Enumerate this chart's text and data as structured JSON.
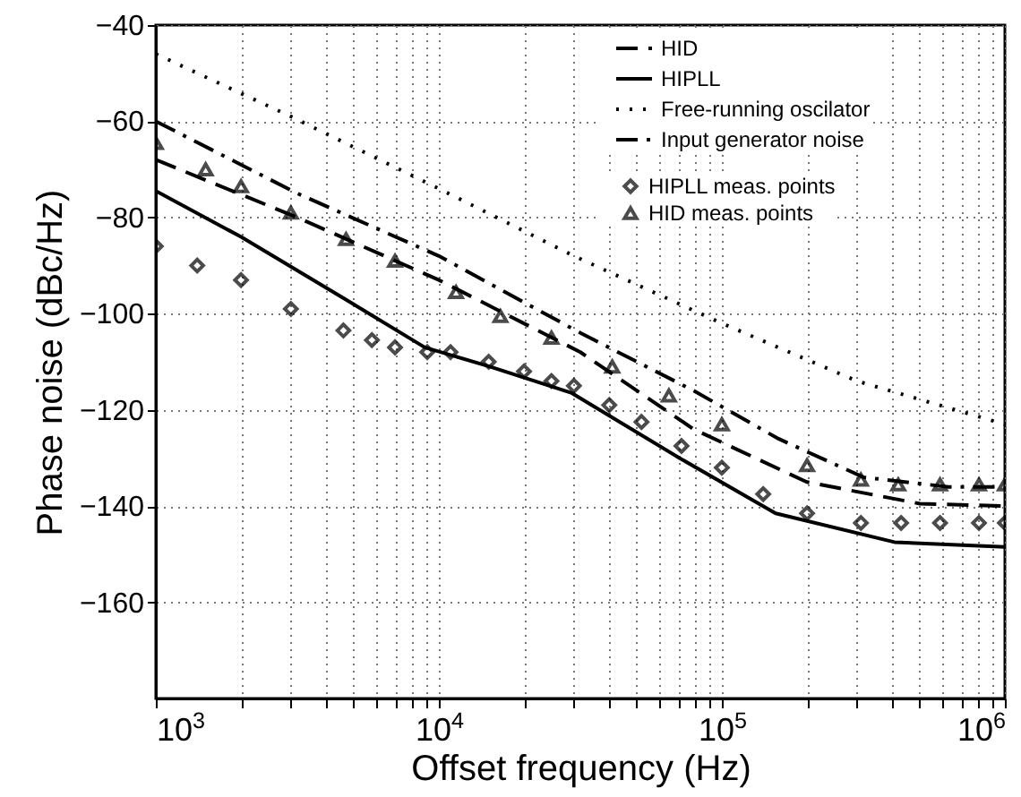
{
  "chart_data": {
    "type": "line",
    "xlabel": "Offset frequency (Hz)",
    "ylabel": "Phase noise (dBc/Hz)",
    "log": "x",
    "xlim": [
      1000,
      1000000
    ],
    "ylim": [
      -180,
      -40
    ],
    "xticks": [
      {
        "value": 1000,
        "label": "10$^{3}$"
      },
      {
        "value": 2000,
        "label": null
      },
      {
        "value": 3000,
        "label": null
      },
      {
        "value": 4000,
        "label": null
      },
      {
        "value": 5000,
        "label": null
      },
      {
        "value": 6000,
        "label": null
      },
      {
        "value": 7000,
        "label": null
      },
      {
        "value": 8000,
        "label": null
      },
      {
        "value": 9000,
        "label": null
      },
      {
        "value": 10000,
        "label": "10$^{4}$"
      },
      {
        "value": 20000,
        "label": null
      },
      {
        "value": 30000,
        "label": null
      },
      {
        "value": 40000,
        "label": null
      },
      {
        "value": 50000,
        "label": null
      },
      {
        "value": 60000,
        "label": null
      },
      {
        "value": 70000,
        "label": null
      },
      {
        "value": 80000,
        "label": null
      },
      {
        "value": 90000,
        "label": null
      },
      {
        "value": 100000,
        "label": "10$^{5}$"
      },
      {
        "value": 200000,
        "label": null
      },
      {
        "value": 300000,
        "label": null
      },
      {
        "value": 400000,
        "label": null
      },
      {
        "value": 500000,
        "label": null
      },
      {
        "value": 600000,
        "label": null
      },
      {
        "value": 700000,
        "label": null
      },
      {
        "value": 800000,
        "label": null
      },
      {
        "value": 900000,
        "label": null
      },
      {
        "value": 1000000,
        "label": "10$^{6}$"
      }
    ],
    "yticks": [
      -160,
      -140,
      -120,
      -100,
      -80,
      -60,
      -40
    ],
    "grid": true,
    "legend": "top right",
    "series": [
      {
        "name": "HID",
        "line_style": "dashed",
        "color": "#000000",
        "x": [
          1000,
          3162,
          10000,
          31623,
          79433,
          199526,
          501187,
          1000000
        ],
        "values": [
          -68,
          -80,
          -93,
          -108,
          -124,
          -135,
          -139.5,
          -140
        ]
      },
      {
        "name": "HIPLL",
        "line_style": "solid",
        "color": "#000000",
        "x": [
          1000,
          1995,
          4677,
          8913,
          15136,
          29512,
          70795,
          154882,
          407380,
          1000000
        ],
        "values": [
          -74.5,
          -84,
          -97,
          -107,
          -111,
          -116.5,
          -130,
          -141.5,
          -147.5,
          -148.5
        ]
      },
      {
        "name": "Free-running oscilator",
        "line_style": "dotted",
        "color": "#000000",
        "x": [
          1000,
          3000,
          10000,
          30000,
          100000,
          300000,
          1000000
        ],
        "values": [
          -46,
          -59,
          -74,
          -88,
          -102,
          -114,
          -123
        ]
      },
      {
        "name": "Input generator noise",
        "line_style": "dashdot",
        "color": "#000000",
        "x": [
          1000,
          3162,
          10000,
          31623,
          79433,
          158489,
          316228,
          630957,
          1000000
        ],
        "values": [
          -60,
          -75,
          -88,
          -104,
          -116,
          -126,
          -134,
          -136,
          -136
        ]
      },
      {
        "name": "HIPLL meas. points",
        "type": "scatter",
        "marker": "diamond",
        "color": "#000000",
        "x": [
          1000,
          1400,
          2000,
          3000,
          4600,
          5800,
          7000,
          9100,
          11000,
          15000,
          20000,
          25000,
          30000,
          40000,
          52000,
          72000,
          100000,
          140000,
          200000,
          310000,
          430000,
          590000,
          810000,
          1000000
        ],
        "values": [
          -86,
          -90,
          -93,
          -99,
          -103.5,
          -105.5,
          -107,
          -108,
          -108,
          -110,
          -112,
          -114,
          -115,
          -119,
          -122.5,
          -127.5,
          -132,
          -137.5,
          -141.5,
          -143.5,
          -143.5,
          -143.5,
          -143.5,
          -143.5
        ]
      },
      {
        "name": "HID meas. points",
        "type": "scatter",
        "marker": "triangle",
        "color": "#000000",
        "x": [
          1000,
          1500,
          2000,
          3000,
          4700,
          7000,
          11500,
          16500,
          25000,
          41000,
          65000,
          100000,
          200000,
          310000,
          420000,
          590000,
          810000,
          1000000
        ],
        "values": [
          -64.5,
          -70,
          -73.5,
          -79,
          -84.5,
          -89,
          -95.5,
          -100.5,
          -105,
          -111,
          -117,
          -123,
          -131.5,
          -134.5,
          -135.5,
          -135.5,
          -135.5,
          -135.5
        ]
      }
    ]
  }
}
